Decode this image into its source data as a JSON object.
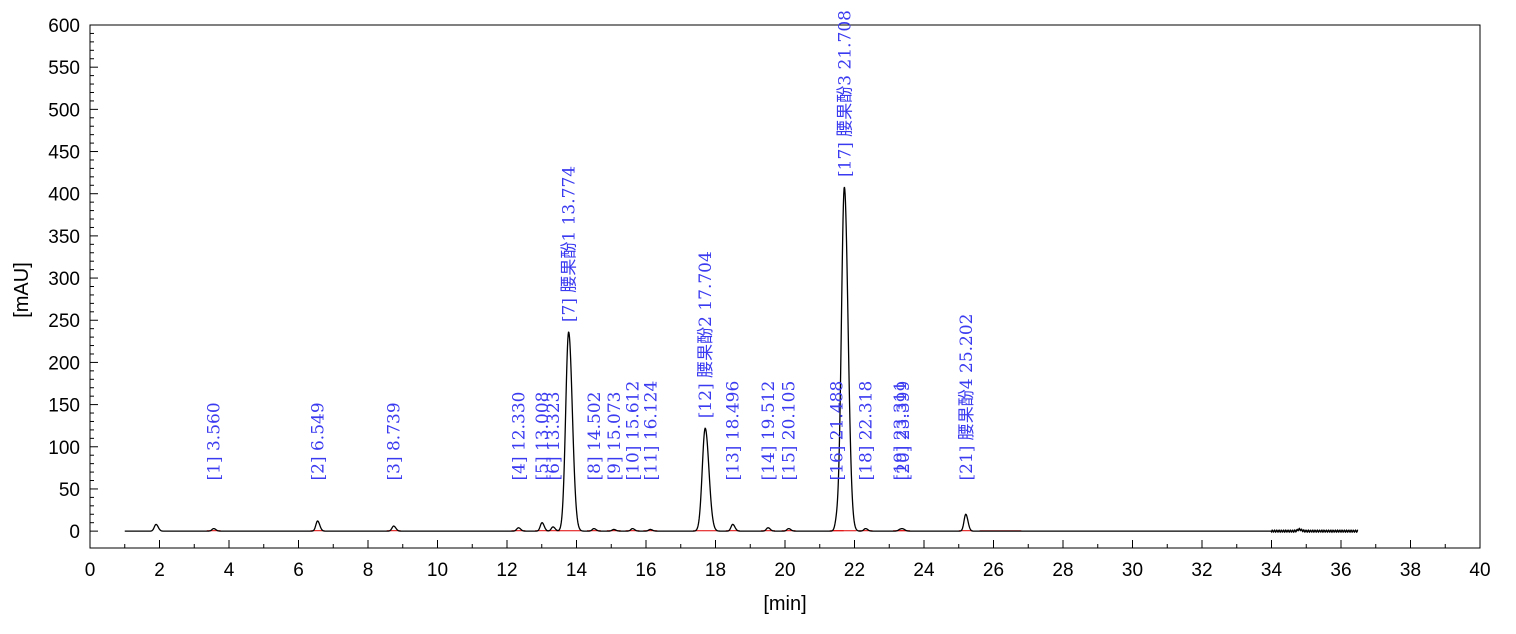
{
  "chart_data": {
    "type": "line",
    "title": "",
    "xlabel": "[min]",
    "ylabel": "[mAU]",
    "xlim": [
      0,
      40
    ],
    "ylim": [
      -20,
      600
    ],
    "x_ticks": [
      "0",
      "2",
      "4",
      "6",
      "8",
      "10",
      "12",
      "14",
      "16",
      "18",
      "20",
      "22",
      "24",
      "26",
      "28",
      "30",
      "32",
      "34",
      "36",
      "38",
      "40"
    ],
    "y_ticks": [
      "0",
      "50",
      "100",
      "150",
      "200",
      "250",
      "300",
      "350",
      "400",
      "450",
      "500",
      "550",
      "600"
    ],
    "colors": {
      "trace": "#000000",
      "baseline": "#e00000",
      "labels": "#3a3af0",
      "axes": "#000000"
    },
    "peaks": [
      {
        "rt": 1.9,
        "height": 8,
        "label": ""
      },
      {
        "rt": 3.56,
        "height": 3,
        "label": "[1]  3.560"
      },
      {
        "rt": 6.549,
        "height": 12,
        "label": "[2]  6.549"
      },
      {
        "rt": 8.739,
        "height": 6,
        "label": "[3]  8.739"
      },
      {
        "rt": 12.33,
        "height": 4,
        "label": "[4]  12.330"
      },
      {
        "rt": 13.008,
        "height": 10,
        "label": "[5]  13.008"
      },
      {
        "rt": 13.323,
        "height": 5,
        "label": "[6]  13.323"
      },
      {
        "rt": 13.774,
        "height": 236,
        "label": "[7] 腰果酚1 13.774"
      },
      {
        "rt": 14.502,
        "height": 3,
        "label": "[8]  14.502"
      },
      {
        "rt": 15.073,
        "height": 2,
        "label": "[9]  15.073"
      },
      {
        "rt": 15.612,
        "height": 3,
        "label": "[10]  15.612"
      },
      {
        "rt": 16.124,
        "height": 2,
        "label": "[11]  16.124"
      },
      {
        "rt": 17.704,
        "height": 122,
        "label": "[12] 腰果酚2 17.704"
      },
      {
        "rt": 18.496,
        "height": 8,
        "label": "[13]  18.496"
      },
      {
        "rt": 19.512,
        "height": 4,
        "label": "[14]  19.512"
      },
      {
        "rt": 20.105,
        "height": 3,
        "label": "[15]  20.105"
      },
      {
        "rt": 21.488,
        "height": 10,
        "label": "[16]  21.488"
      },
      {
        "rt": 21.708,
        "height": 408,
        "label": "[17] 腰果酚3 21.708"
      },
      {
        "rt": 22.318,
        "height": 3,
        "label": "[18]  22.318"
      },
      {
        "rt": 23.311,
        "height": 2,
        "label": "[19]  23.311"
      },
      {
        "rt": 23.399,
        "height": 2,
        "label": "[20]  23.399"
      },
      {
        "rt": 25.202,
        "height": 20,
        "label": "[21] 腰果酚4 25.202"
      },
      {
        "rt": 34.8,
        "height": 2,
        "label": ""
      }
    ]
  }
}
